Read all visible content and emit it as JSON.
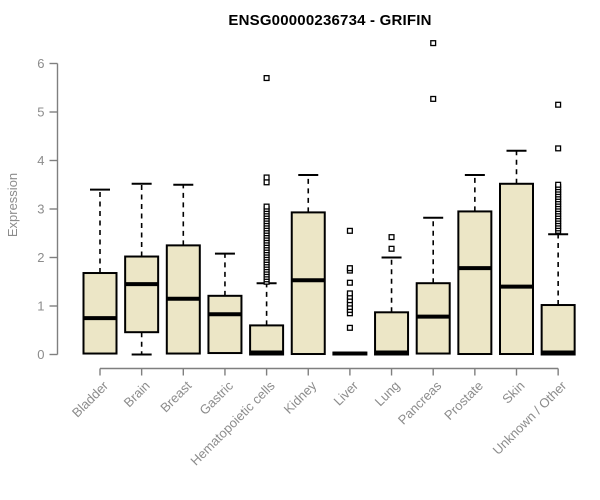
{
  "chart_data": {
    "type": "boxplot",
    "title": "ENSG00000236734 - GRIFIN",
    "ylabel": "Expression",
    "xlabel": "",
    "yticks": [
      0,
      1,
      2,
      3,
      4,
      5,
      6
    ],
    "ylim": [
      0,
      6.5
    ],
    "grid": false,
    "legend": false,
    "colors": {
      "box_fill": "#ece6c6",
      "box_border": "#000000",
      "median": "#000000",
      "whisker": "#000000",
      "outlier_stroke": "#000000",
      "outlier_fill": "#ffffff",
      "axis": "#7f7f7f",
      "tick_text": "#8c8c8c",
      "title_text": "#000000",
      "background": "#ffffff"
    },
    "categories": [
      "Bladder",
      "Brain",
      "Breast",
      "Gastric",
      "Hematopoietic cells",
      "Kidney",
      "Liver",
      "Lung",
      "Pancreas",
      "Prostate",
      "Skin",
      "Unknown / Other"
    ],
    "series": [
      {
        "category": "Bladder",
        "whisker_low": 0.02,
        "q1": 0.02,
        "median": 0.75,
        "q3": 1.68,
        "whisker_high": 3.4,
        "outliers": []
      },
      {
        "category": "Brain",
        "whisker_low": 0.0,
        "q1": 0.46,
        "median": 1.45,
        "q3": 2.02,
        "whisker_high": 3.52,
        "outliers": []
      },
      {
        "category": "Breast",
        "whisker_low": 0.02,
        "q1": 0.02,
        "median": 1.15,
        "q3": 2.25,
        "whisker_high": 3.5,
        "outliers": []
      },
      {
        "category": "Gastric",
        "whisker_low": 0.03,
        "q1": 0.03,
        "median": 0.83,
        "q3": 1.21,
        "whisker_high": 2.08,
        "outliers": []
      },
      {
        "category": "Hematopoietic cells",
        "whisker_low": 0.0,
        "q1": 0.0,
        "median": 0.04,
        "q3": 0.6,
        "whisker_high": 1.47,
        "outliers": [
          1.5,
          1.55,
          1.6,
          1.65,
          1.7,
          1.75,
          1.8,
          1.85,
          1.9,
          1.95,
          2.0,
          2.05,
          2.1,
          2.15,
          2.2,
          2.25,
          2.3,
          2.35,
          2.4,
          2.45,
          2.5,
          2.55,
          2.6,
          2.65,
          2.7,
          2.75,
          2.8,
          2.85,
          2.9,
          2.95,
          3.0,
          3.05,
          3.55,
          3.65,
          5.7
        ]
      },
      {
        "category": "Kidney",
        "whisker_low": 0.01,
        "q1": 0.01,
        "median": 1.53,
        "q3": 2.93,
        "whisker_high": 3.7,
        "outliers": []
      },
      {
        "category": "Liver",
        "whisker_low": 0.0,
        "q1": 0.0,
        "median": 0.02,
        "q3": 0.04,
        "whisker_high": 0.04,
        "outliers": [
          0.55,
          0.85,
          0.92,
          0.98,
          1.05,
          1.12,
          1.19,
          1.26,
          1.48,
          1.73,
          1.78,
          2.55
        ]
      },
      {
        "category": "Lung",
        "whisker_low": 0.0,
        "q1": 0.0,
        "median": 0.04,
        "q3": 0.87,
        "whisker_high": 2.0,
        "outliers": [
          2.18,
          2.42
        ]
      },
      {
        "category": "Pancreas",
        "whisker_low": 0.02,
        "q1": 0.02,
        "median": 0.78,
        "q3": 1.47,
        "whisker_high": 2.82,
        "outliers": [
          5.27,
          6.42
        ]
      },
      {
        "category": "Prostate",
        "whisker_low": 0.01,
        "q1": 0.01,
        "median": 1.78,
        "q3": 2.95,
        "whisker_high": 3.7,
        "outliers": []
      },
      {
        "category": "Skin",
        "whisker_low": 0.01,
        "q1": 0.01,
        "median": 1.4,
        "q3": 3.52,
        "whisker_high": 4.2,
        "outliers": []
      },
      {
        "category": "Unknown / Other",
        "whisker_low": 0.0,
        "q1": 0.0,
        "median": 0.04,
        "q3": 1.02,
        "whisker_high": 2.48,
        "outliers": [
          2.55,
          2.6,
          2.65,
          2.7,
          2.75,
          2.8,
          2.85,
          2.9,
          2.95,
          3.0,
          3.05,
          3.1,
          3.15,
          3.2,
          3.25,
          3.3,
          3.35,
          3.4,
          3.45,
          3.5,
          4.25,
          5.15
        ]
      }
    ]
  }
}
